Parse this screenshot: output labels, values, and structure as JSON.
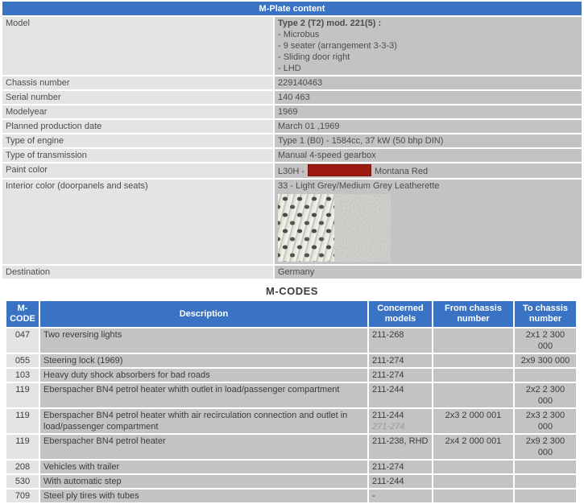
{
  "colors": {
    "accent_blue": "#3B73C4",
    "cell_light_grey": "#E4E4E4",
    "cell_medium_grey": "#C3C3C3",
    "paint_swatch_red": "#9B1B10",
    "faded_text_grey": "#9A9A9A"
  },
  "mplate": {
    "title": "M-Plate content",
    "model": {
      "label": "Model",
      "bold": "Type 2 (T2) mod. 221(5) :",
      "lines": [
        "- Microbus",
        "- 9 seater (arrangement 3-3-3)",
        "- Sliding door right",
        "- LHD"
      ]
    },
    "chassis": {
      "label": "Chassis number",
      "value": "229140463"
    },
    "serial": {
      "label": "Serial number",
      "value": "140 463"
    },
    "modelyear": {
      "label": "Modelyear",
      "value": "1969"
    },
    "production_date": {
      "label": "Planned production date",
      "value": "March 01 ,1969"
    },
    "engine": {
      "label": "Type of engine",
      "value": "Type 1 (B0) - 1584cc, 37 kW (50 bhp DIN)"
    },
    "transmission": {
      "label": "Type of transmission",
      "value": "Manual 4-speed gearbox"
    },
    "paint": {
      "label": "Paint color",
      "code": "L30H -",
      "name": "Montana Red",
      "swatch_color": "#9B1B10"
    },
    "interior": {
      "label": "Interior color (doorpanels and seats)",
      "value": "33 - Light Grey/Medium Grey Leatherette",
      "texture_description": "light grey weave swatch / medium grey speckle swatch"
    },
    "destination": {
      "label": "Destination",
      "value": "Germany"
    }
  },
  "mcodes": {
    "title": "M-CODES",
    "headers": [
      "M-CODE",
      "Description",
      "Concerned models",
      "From chassis number",
      "To chassis number"
    ],
    "rows": [
      {
        "code": "047",
        "description": "Two reversing lights",
        "models": "211-268",
        "from": "",
        "to": "2x1 2 300 000"
      },
      {
        "code": "055",
        "description": "Steering lock (1969)",
        "models": "211-274",
        "from": "",
        "to": "2x9 300 000"
      },
      {
        "code": "103",
        "description": "Heavy duty shock absorbers for bad roads",
        "models": "211-274",
        "from": "",
        "to": ""
      },
      {
        "code": "119",
        "description": "Eberspacher BN4 petrol heater whith outlet in load/passenger compartment",
        "models": "211-244",
        "from": "",
        "to": "2x2 2 300 000"
      },
      {
        "code": "119",
        "description": "Eberspacher BN4 petrol heater whith air recirculation connection and outlet in load/passenger compartment",
        "models": "211-244",
        "models2": "271-274",
        "from": "2x3 2 000 001",
        "to": "2x3 2 300 000"
      },
      {
        "code": "119",
        "description": "Eberspacher BN4 petrol heater",
        "models": "211-238, RHD",
        "from": "2x4 2 000 001",
        "to": "2x9 2 300 000"
      },
      {
        "code": "208",
        "description": "Vehicles with trailer",
        "models": "211-274",
        "from": "",
        "to": ""
      },
      {
        "code": "530",
        "description": "With automatic step",
        "models": "211-244",
        "from": "",
        "to": ""
      },
      {
        "code": "709",
        "description": "Steel ply tires with tubes",
        "models": "-",
        "from": "",
        "to": ""
      }
    ]
  }
}
